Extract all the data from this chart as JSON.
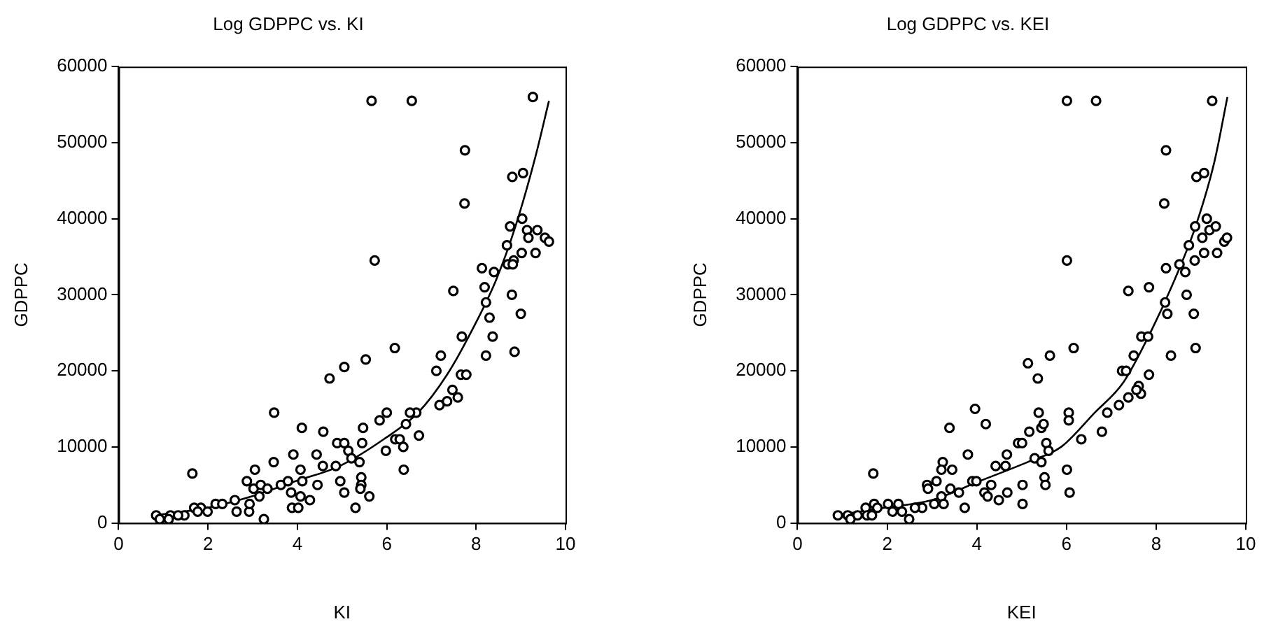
{
  "chart_data": [
    {
      "type": "scatter",
      "title": "Log GDPPC vs. KI",
      "xlabel": "KI",
      "ylabel": "GDPPC",
      "xlim": [
        0,
        10
      ],
      "xticks": [
        0,
        2,
        4,
        6,
        8,
        10
      ],
      "ylim": [
        0,
        60000
      ],
      "yticks": [
        0,
        10000,
        20000,
        30000,
        40000,
        50000,
        60000
      ],
      "series": [
        {
          "type": "scatter",
          "marker": "circle",
          "color": "#000000",
          "x": [
            5.66,
            6.56,
            9.27,
            7.75,
            7.74,
            8.81,
            9.05,
            9.03,
            8.76,
            9.14,
            9.37,
            9.17,
            9.54,
            9.63,
            9.33,
            9.02,
            8.84,
            8.71,
            8.69,
            8.82,
            5.73,
            8.13,
            8.4,
            8.19,
            7.49,
            8.22,
            8.3,
            8.8,
            9.0,
            8.37,
            8.86,
            8.22,
            7.68,
            7.21,
            7.11,
            7.66,
            7.78,
            6.18,
            5.53,
            5.05,
            4.72,
            7.18,
            7.35,
            7.47,
            7.59,
            6.66,
            6.52,
            6.43,
            6.72,
            6.0,
            5.84,
            5.98,
            6.19,
            6.29,
            6.37,
            6.38,
            3.48,
            4.1,
            4.58,
            5.47,
            5.45,
            4.89,
            5.05,
            5.14,
            5.21,
            5.39,
            4.57,
            4.86,
            4.43,
            3.91,
            3.47,
            4.07,
            3.05,
            1.65,
            2.87,
            3.02,
            3.18,
            3.33,
            3.63,
            3.79,
            4.11,
            4.45,
            4.96,
            5.43,
            5.43,
            5.41,
            5.05,
            5.61,
            5.3,
            4.28,
            3.88,
            4.02,
            3.86,
            4.07,
            3.25,
            2.6,
            2.64,
            2.92,
            2.93,
            3.15,
            2.17,
            2.32,
            1.84,
            1.69,
            1.99,
            1.47,
            1.16,
            0.84,
            0.92,
            1.12,
            1.33,
            1.77
          ],
          "values": [
            55500,
            55500,
            56000,
            49000,
            42000,
            45500,
            46000,
            40000,
            39000,
            38500,
            38500,
            37500,
            37500,
            37000,
            35500,
            35500,
            34500,
            34000,
            36500,
            34000,
            34500,
            33500,
            33000,
            31000,
            30500,
            29000,
            27000,
            30000,
            27500,
            24500,
            22500,
            22000,
            24500,
            22000,
            20000,
            19500,
            19500,
            23000,
            21500,
            20500,
            19000,
            15500,
            16000,
            17500,
            16500,
            14500,
            14500,
            13000,
            11500,
            14500,
            13500,
            9500,
            11000,
            11000,
            10000,
            7000,
            14500,
            12500,
            12000,
            12500,
            10500,
            10500,
            10500,
            9500,
            8500,
            8000,
            7500,
            7500,
            9000,
            9000,
            8000,
            7000,
            7000,
            6500,
            5500,
            4500,
            5000,
            4500,
            5000,
            5500,
            5500,
            5000,
            5500,
            6000,
            5000,
            4500,
            4000,
            3500,
            2000,
            3000,
            2000,
            2000,
            4000,
            3500,
            500,
            3000,
            1500,
            1500,
            2500,
            3500,
            2500,
            2500,
            2000,
            2000,
            1500,
            1000,
            1000,
            1000,
            500,
            500,
            1000,
            1500
          ]
        },
        {
          "type": "line",
          "marker": "none",
          "color": "#000000",
          "x": [
            0.79,
            1.99,
            2.98,
            3.96,
            4.95,
            5.93,
            6.7,
            7.35,
            8.01,
            8.45,
            8.88,
            9.32,
            9.63
          ],
          "values": [
            1000,
            2000,
            3500,
            5500,
            7500,
            11000,
            14500,
            19500,
            26500,
            32000,
            39000,
            48000,
            55500
          ]
        }
      ]
    },
    {
      "type": "scatter",
      "title": "Log GDPPC vs. KEI",
      "xlabel": "KEI",
      "ylabel": "GDPPC",
      "xlim": [
        0,
        10
      ],
      "xticks": [
        0,
        2,
        4,
        6,
        8,
        10
      ],
      "ylim": [
        0,
        60000
      ],
      "yticks": [
        0,
        10000,
        20000,
        30000,
        40000,
        50000,
        60000
      ],
      "series": [
        {
          "type": "scatter",
          "marker": "circle",
          "color": "#000000",
          "x": [
            6.01,
            6.66,
            9.25,
            8.22,
            8.18,
            8.9,
            9.07,
            9.13,
            8.87,
            9.03,
            9.19,
            9.33,
            9.07,
            8.86,
            9.36,
            9.52,
            9.58,
            8.73,
            8.52,
            8.22,
            8.65,
            6.01,
            7.38,
            7.84,
            8.2,
            8.25,
            8.68,
            8.84,
            8.88,
            8.33,
            7.67,
            7.82,
            7.5,
            6.16,
            5.63,
            5.14,
            5.36,
            7.24,
            7.33,
            7.84,
            7.61,
            7.66,
            7.56,
            7.38,
            7.17,
            6.91,
            6.79,
            6.33,
            6.05,
            6.05,
            3.96,
            4.2,
            3.39,
            5.38,
            5.44,
            5.49,
            5.17,
            5.55,
            4.92,
            5.01,
            5.6,
            4.67,
            5.29,
            5.44,
            6.01,
            3.8,
            3.24,
            3.21,
            3.45,
            4.42,
            4.64,
            1.69,
            3.1,
            2.89,
            2.91,
            3.21,
            3.41,
            3.6,
            3.9,
            3.99,
            4.32,
            4.17,
            4.24,
            4.68,
            5.02,
            5.51,
            5.53,
            4.49,
            5.02,
            6.07,
            3.73,
            3.26,
            2.78,
            3.05,
            2.62,
            2.49,
            2.25,
            2.02,
            2.12,
            2.33,
            1.71,
            1.52,
            1.78,
            1.55,
            1.66,
            1.34,
            1.12,
            0.9,
            1.18
          ],
          "values": [
            55500,
            55500,
            55500,
            49000,
            42000,
            45500,
            46000,
            40000,
            39000,
            37500,
            38500,
            39000,
            35500,
            34500,
            35500,
            37000,
            37500,
            36500,
            34000,
            33500,
            33000,
            34500,
            30500,
            31000,
            29000,
            27500,
            30000,
            27500,
            23000,
            22000,
            24500,
            24500,
            22000,
            23000,
            22000,
            21000,
            19000,
            20000,
            20000,
            19500,
            18000,
            17000,
            17500,
            16500,
            15500,
            14500,
            12000,
            11000,
            14500,
            13500,
            15000,
            13000,
            12500,
            14500,
            12500,
            13000,
            12000,
            10500,
            10500,
            10500,
            9500,
            9000,
            8500,
            8000,
            7000,
            9000,
            8000,
            7000,
            7000,
            7500,
            7500,
            6500,
            5500,
            5000,
            4500,
            3500,
            4500,
            4000,
            5500,
            5500,
            5000,
            4000,
            3500,
            4000,
            5000,
            6000,
            5000,
            3000,
            2500,
            4000,
            2000,
            2500,
            2000,
            2500,
            2000,
            500,
            2500,
            2500,
            1500,
            1500,
            2500,
            2000,
            2000,
            1000,
            1000,
            1000,
            1000,
            1000,
            500
          ]
        },
        {
          "type": "line",
          "marker": "none",
          "color": "#000000",
          "x": [
            0.86,
            1.93,
            2.99,
            4.06,
            5.13,
            5.88,
            6.63,
            7.27,
            7.91,
            8.34,
            8.88,
            9.3,
            9.59
          ],
          "values": [
            1000,
            2000,
            3000,
            5500,
            8000,
            10000,
            14500,
            18500,
            25500,
            31000,
            39000,
            47500,
            56000
          ]
        }
      ]
    }
  ]
}
